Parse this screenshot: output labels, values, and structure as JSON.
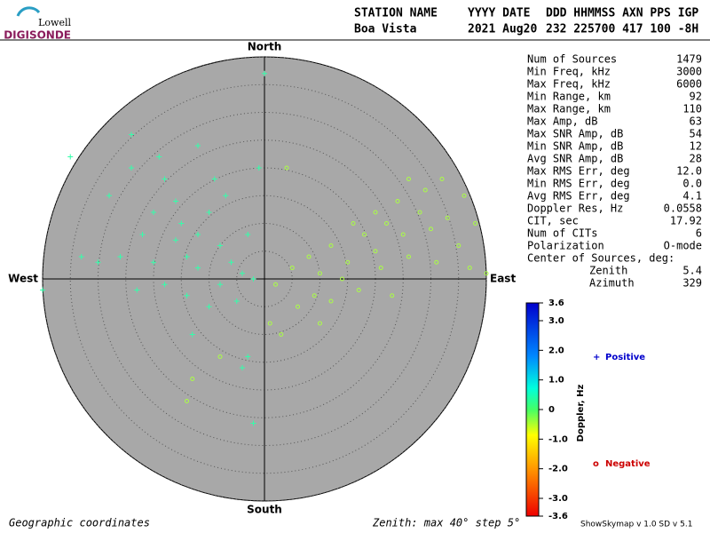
{
  "header": {
    "logo": [
      "Lowell",
      "DIGISONDE"
    ],
    "columns": [
      "STATION NAME",
      "YYYY DATE",
      "DDD HHMMSS AXN PPS IGP"
    ],
    "values": [
      "Boa Vista",
      "2021 Aug20",
      "232 225700 417 100 -8H"
    ]
  },
  "stats": [
    [
      "Num of Sources",
      "1479"
    ],
    [
      "Min Freq, kHz",
      "3000"
    ],
    [
      "Max Freq, kHz",
      "6000"
    ],
    [
      "Min Range, km",
      "92"
    ],
    [
      "Max Range, km",
      "110"
    ],
    [
      "Max Amp, dB",
      "63"
    ],
    [
      "Max SNR Amp, dB",
      "54"
    ],
    [
      "Min SNR Amp, dB",
      "12"
    ],
    [
      "Avg SNR Amp, dB",
      "28"
    ],
    [
      "Max RMS Err, deg",
      "12.0"
    ],
    [
      "Min RMS Err, deg",
      "0.0"
    ],
    [
      "Avg RMS Err, deg",
      "4.1"
    ],
    [
      "Doppler Res, Hz",
      "0.0558"
    ],
    [
      "CIT, sec",
      "17.92"
    ],
    [
      "Num of CITs",
      "6"
    ],
    [
      "Polarization",
      "O-mode"
    ]
  ],
  "center": {
    "title": "Center of Sources, deg:",
    "rows": [
      [
        "Zenith",
        "5.4"
      ],
      [
        "Azimuth",
        "329"
      ]
    ]
  },
  "compass": {
    "north": "North",
    "south": "South",
    "east": "East",
    "west": "West"
  },
  "colorbar": {
    "label": "Doppler, Hz",
    "lim": [
      3.6,
      -3.6
    ],
    "ticks": [
      3.6,
      {
        "value": 3,
        "label": "3.0"
      },
      {
        "value": 2,
        "label": "2.0"
      },
      {
        "value": 1,
        "label": "1.0"
      },
      0,
      {
        "value": -1,
        "label": "-1.0"
      },
      {
        "value": -2,
        "label": "-2.0"
      },
      {
        "value": -3,
        "label": "-3.0"
      },
      -3.6
    ]
  },
  "footer": {
    "left": "Geographic coordinates",
    "middle": "Zenith: max 40°  step 5°",
    "right": "ShowSkymap v 1.0  SD v 5.1"
  },
  "chart_data": {
    "type": "scatter",
    "xlim": [
      -40,
      40
    ],
    "ylim": [
      -40,
      40
    ],
    "rticks": [
      5,
      10,
      15,
      20,
      25,
      30,
      35,
      40
    ],
    "grid": true,
    "series": [
      {
        "name": "Positive",
        "marker": "+",
        "color": "#33ffaa",
        "legend_color": "#0000cc",
        "x": [
          -24,
          -28,
          -20,
          -18,
          -15,
          -12,
          -10,
          -8,
          -6,
          -4,
          -2,
          -14,
          -16,
          -22,
          -26,
          -30,
          -33,
          -20,
          -12,
          -8,
          -5,
          -10,
          -14,
          -18,
          -23,
          -7,
          -3,
          -1,
          0,
          -24,
          -35,
          -40,
          -13,
          -3,
          -4,
          -2,
          -12,
          -9,
          -16,
          -19
        ],
        "values": [
          20,
          15,
          12,
          18,
          10,
          8,
          12,
          6,
          3,
          1,
          0,
          4,
          7,
          8,
          4,
          3,
          4,
          3,
          2,
          -1,
          -4,
          -5,
          -3,
          -1,
          -2,
          15,
          8,
          20,
          37,
          26,
          22,
          -2,
          -10,
          -14,
          -16,
          -26,
          24,
          18,
          14,
          22
        ]
      },
      {
        "name": "Negative",
        "marker": "o",
        "color": "#aaff44",
        "legend_color": "#cc0000",
        "x": [
          2,
          5,
          8,
          10,
          12,
          15,
          18,
          20,
          22,
          25,
          28,
          30,
          33,
          35,
          24,
          20,
          16,
          14,
          9,
          6,
          12,
          17,
          21,
          26,
          31,
          37,
          40,
          36,
          32,
          29,
          3,
          -8,
          -13,
          -14,
          4,
          1,
          10,
          23,
          38,
          26
        ],
        "values": [
          -1,
          2,
          4,
          1,
          6,
          3,
          8,
          5,
          10,
          8,
          12,
          9,
          11,
          6,
          14,
          12,
          10,
          0,
          -3,
          -5,
          -4,
          -2,
          2,
          4,
          3,
          2,
          1,
          15,
          18,
          16,
          -10,
          -14,
          -18,
          -22,
          20,
          -8,
          -8,
          -3,
          10,
          18
        ]
      }
    ]
  }
}
